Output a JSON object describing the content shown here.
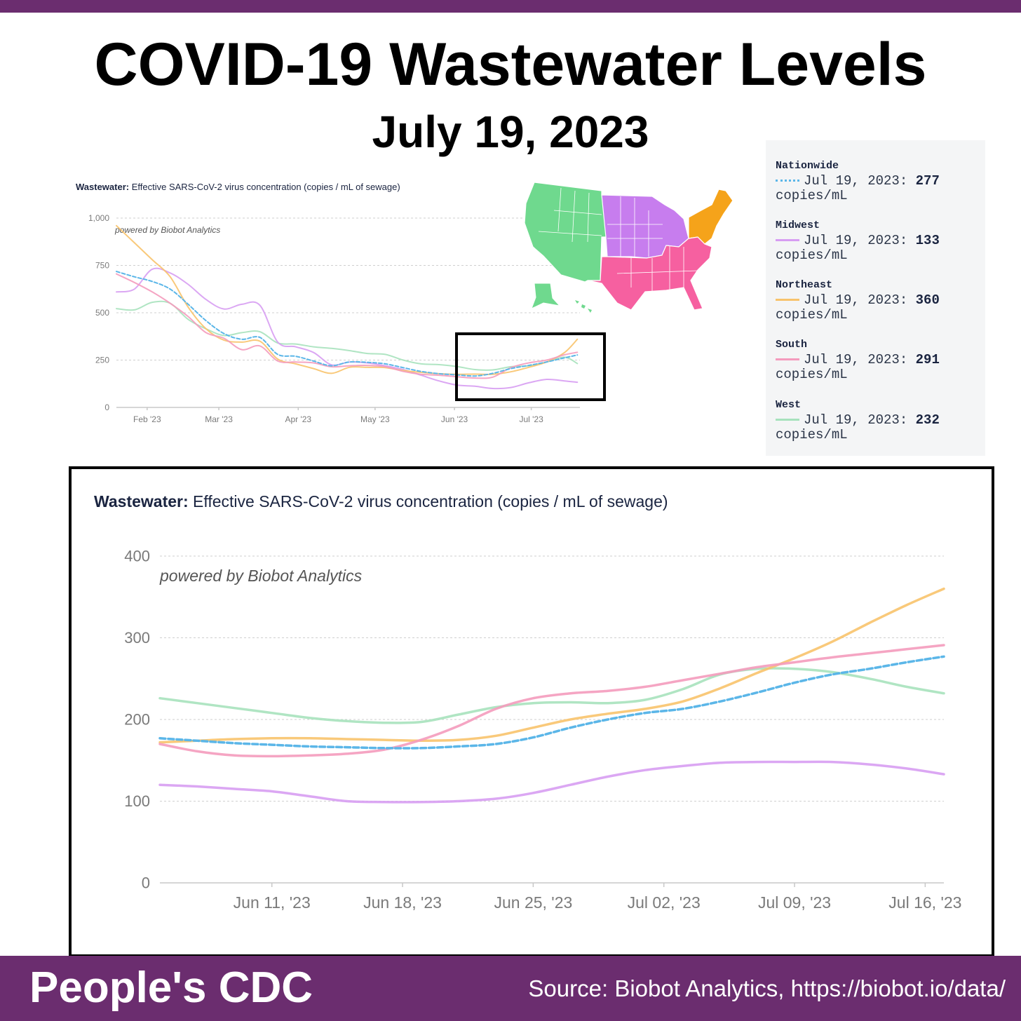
{
  "header": {
    "title": "COVID-19 Wastewater Levels",
    "date": "July 19, 2023"
  },
  "colors": {
    "brand_purple": "#6b2d6f",
    "nationwide": "#5bb6e8",
    "midwest": "#d79df2",
    "northeast": "#f8c36c",
    "south": "#f49bbd",
    "west": "#a7e2bd",
    "map_west": "#6fd98e",
    "map_midwest": "#c77dee",
    "map_northeast": "#f5a31a",
    "map_south": "#f660a0"
  },
  "chart_data": [
    {
      "type": "line",
      "name": "overview",
      "title_bold": "Wastewater:",
      "title": "Effective SARS-CoV-2 virus concentration (copies / mL of sewage)",
      "watermark": "powered by Biobot Analytics",
      "xlabel": "",
      "ylabel": "copies/mL",
      "ylim": [
        0,
        1000
      ],
      "yticks": [
        0,
        250,
        500,
        750,
        1000
      ],
      "ytick_labels": [
        "0",
        "250",
        "500",
        "750",
        "1,000"
      ],
      "xticks": [
        {
          "x": 33,
          "label": "Feb '23"
        },
        {
          "x": 61,
          "label": "Mar '23"
        },
        {
          "x": 92,
          "label": "Apr '23"
        },
        {
          "x": 122,
          "label": "May '23"
        },
        {
          "x": 153,
          "label": "Jun '23"
        },
        {
          "x": 183,
          "label": "Jul '23"
        }
      ],
      "xlim": [
        21,
        202
      ],
      "x": [
        21,
        28,
        35,
        42,
        49,
        56,
        63,
        70,
        77,
        84,
        91,
        98,
        105,
        112,
        119,
        126,
        133,
        140,
        147,
        154,
        161,
        168,
        175,
        182,
        189,
        196,
        201
      ],
      "series": [
        {
          "name": "Nationwide",
          "color": "#5bb6e8",
          "dashed": true,
          "values": [
            718,
            690,
            665,
            625,
            545,
            458,
            390,
            360,
            370,
            280,
            270,
            245,
            220,
            240,
            238,
            230,
            210,
            190,
            178,
            172,
            166,
            180,
            205,
            222,
            240,
            262,
            277
          ]
        },
        {
          "name": "Midwest",
          "color": "#d79df2",
          "values": [
            610,
            625,
            730,
            710,
            650,
            570,
            520,
            545,
            540,
            345,
            320,
            290,
            225,
            240,
            235,
            220,
            200,
            170,
            140,
            118,
            112,
            100,
            105,
            130,
            148,
            140,
            133
          ]
        },
        {
          "name": "Northeast",
          "color": "#f8c36c",
          "values": [
            960,
            870,
            780,
            690,
            530,
            415,
            355,
            345,
            350,
            255,
            230,
            205,
            180,
            212,
            212,
            210,
            195,
            185,
            178,
            175,
            176,
            175,
            188,
            212,
            240,
            290,
            360
          ]
        },
        {
          "name": "South",
          "color": "#f49bbd",
          "values": [
            705,
            660,
            610,
            550,
            480,
            395,
            365,
            305,
            325,
            245,
            240,
            235,
            215,
            220,
            222,
            215,
            190,
            175,
            170,
            162,
            155,
            160,
            210,
            235,
            250,
            278,
            291
          ]
        },
        {
          "name": "West",
          "color": "#a7e2bd",
          "values": [
            522,
            515,
            555,
            550,
            465,
            415,
            380,
            395,
            400,
            340,
            335,
            320,
            312,
            300,
            285,
            280,
            250,
            230,
            226,
            216,
            200,
            198,
            215,
            220,
            240,
            265,
            232
          ]
        }
      ],
      "inset_map": {
        "regions": [
          "West",
          "Midwest",
          "Northeast",
          "South"
        ]
      }
    },
    {
      "type": "line",
      "name": "zoomed",
      "title_bold": "Wastewater:",
      "title": "Effective SARS-CoV-2 virus concentration (copies / mL of sewage)",
      "watermark": "powered by Biobot Analytics",
      "xlabel": "",
      "ylabel": "copies/mL",
      "ylim": [
        0,
        400
      ],
      "yticks": [
        0,
        100,
        200,
        300,
        400
      ],
      "ytick_labels": [
        "0",
        "100",
        "200",
        "300",
        "400"
      ],
      "xlim": [
        0,
        42
      ],
      "xticks": [
        {
          "x": 6,
          "label": "Jun 11, '23"
        },
        {
          "x": 13,
          "label": "Jun 18, '23"
        },
        {
          "x": 20,
          "label": "Jun 25, '23"
        },
        {
          "x": 27,
          "label": "Jul 02, '23"
        },
        {
          "x": 34,
          "label": "Jul 09, '23"
        },
        {
          "x": 41,
          "label": "Jul 16, '23"
        }
      ],
      "x": [
        0,
        2,
        4,
        6,
        8,
        10,
        12,
        14,
        16,
        18,
        20,
        22,
        24,
        26,
        28,
        30,
        32,
        34,
        36,
        38,
        40,
        42
      ],
      "series": [
        {
          "name": "Nationwide",
          "color": "#5bb6e8",
          "dashed": true,
          "values": [
            177,
            174,
            171,
            169,
            167,
            166,
            165,
            165,
            167,
            170,
            178,
            190,
            200,
            208,
            213,
            222,
            233,
            245,
            255,
            262,
            270,
            277
          ]
        },
        {
          "name": "Midwest",
          "color": "#d79df2",
          "values": [
            120,
            118,
            115,
            112,
            106,
            100,
            99,
            99,
            100,
            103,
            110,
            120,
            130,
            138,
            143,
            147,
            148,
            148,
            148,
            145,
            140,
            133
          ]
        },
        {
          "name": "Northeast",
          "color": "#f8c36c",
          "values": [
            172,
            174,
            176,
            177,
            177,
            176,
            175,
            174,
            175,
            180,
            190,
            200,
            207,
            213,
            222,
            238,
            257,
            275,
            295,
            318,
            340,
            360
          ]
        },
        {
          "name": "South",
          "color": "#f49bbd",
          "values": [
            170,
            161,
            156,
            155,
            156,
            158,
            163,
            175,
            192,
            213,
            226,
            232,
            235,
            240,
            248,
            256,
            264,
            270,
            276,
            281,
            286,
            291
          ]
        },
        {
          "name": "West",
          "color": "#a7e2bd",
          "values": [
            226,
            220,
            214,
            208,
            202,
            198,
            196,
            197,
            206,
            215,
            220,
            221,
            220,
            224,
            237,
            255,
            262,
            262,
            258,
            250,
            240,
            232
          ]
        }
      ]
    }
  ],
  "legend": {
    "unit": "copies/mL",
    "items": [
      {
        "region": "Nationwide",
        "date": "Jul 19, 2023:",
        "value": "277"
      },
      {
        "region": "Midwest",
        "date": "Jul 19, 2023:",
        "value": "133"
      },
      {
        "region": "Northeast",
        "date": "Jul 19, 2023:",
        "value": "360"
      },
      {
        "region": "South",
        "date": "Jul 19, 2023:",
        "value": "291"
      },
      {
        "region": "West",
        "date": "Jul 19, 2023:",
        "value": "232"
      }
    ]
  },
  "footer": {
    "brand": "People's CDC",
    "source": "Source: Biobot Analytics, https://biobot.io/data/"
  }
}
